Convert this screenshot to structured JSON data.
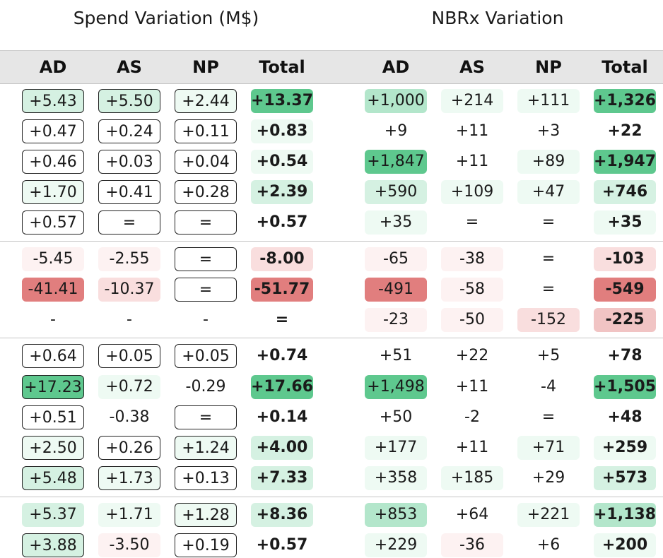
{
  "titles": {
    "spend": "Spend Variation (M$)",
    "nbrx": "NBRx Variation"
  },
  "headers": {
    "spend": [
      "AD",
      "AS",
      "NP",
      "Total"
    ],
    "nbrx": [
      "AD",
      "AS",
      "NP",
      "Total"
    ]
  },
  "colors": {
    "g1": "#eefaf3",
    "g2": "#d5f1e2",
    "g3": "#b3e6cb",
    "g4": "#5ec88e",
    "r1": "#fdf2f2",
    "r2": "#f9dede",
    "r3": "#f1c4c4",
    "r4": "#e17e7e"
  },
  "groups": [
    {
      "rows": [
        {
          "spend": [
            {
              "v": "+5.43",
              "c": "g2",
              "box": true
            },
            {
              "v": "+5.50",
              "c": "g2",
              "box": true
            },
            {
              "v": "+2.44",
              "c": "g1",
              "box": true
            },
            {
              "v": "+13.37",
              "c": "g4"
            }
          ],
          "nbrx": [
            {
              "v": "+1,000",
              "c": "g3"
            },
            {
              "v": "+214",
              "c": "g1"
            },
            {
              "v": "+111",
              "c": "g1"
            },
            {
              "v": "+1,326",
              "c": "g4"
            }
          ]
        },
        {
          "spend": [
            {
              "v": "+0.47",
              "c": "",
              "box": true
            },
            {
              "v": "+0.24",
              "c": "",
              "box": true
            },
            {
              "v": "+0.11",
              "c": "",
              "box": true
            },
            {
              "v": "+0.83",
              "c": "g1"
            }
          ],
          "nbrx": [
            {
              "v": "+9",
              "c": ""
            },
            {
              "v": "+11",
              "c": ""
            },
            {
              "v": "+3",
              "c": ""
            },
            {
              "v": "+22",
              "c": ""
            }
          ]
        },
        {
          "spend": [
            {
              "v": "+0.46",
              "c": "",
              "box": true
            },
            {
              "v": "+0.03",
              "c": "",
              "box": true
            },
            {
              "v": "+0.04",
              "c": "",
              "box": true
            },
            {
              "v": "+0.54",
              "c": "g1"
            }
          ],
          "nbrx": [
            {
              "v": "+1,847",
              "c": "g4"
            },
            {
              "v": "+11",
              "c": ""
            },
            {
              "v": "+89",
              "c": "g1"
            },
            {
              "v": "+1,947",
              "c": "g4"
            }
          ]
        },
        {
          "spend": [
            {
              "v": "+1.70",
              "c": "g1",
              "box": true
            },
            {
              "v": "+0.41",
              "c": "",
              "box": true
            },
            {
              "v": "+0.28",
              "c": "",
              "box": true
            },
            {
              "v": "+2.39",
              "c": "g2"
            }
          ],
          "nbrx": [
            {
              "v": "+590",
              "c": "g2"
            },
            {
              "v": "+109",
              "c": "g1"
            },
            {
              "v": "+47",
              "c": "g1"
            },
            {
              "v": "+746",
              "c": "g2"
            }
          ]
        },
        {
          "spend": [
            {
              "v": "+0.57",
              "c": "",
              "box": true
            },
            {
              "v": "=",
              "c": "",
              "box": true
            },
            {
              "v": "=",
              "c": "",
              "box": true
            },
            {
              "v": "+0.57",
              "c": ""
            }
          ],
          "nbrx": [
            {
              "v": "+35",
              "c": "g1"
            },
            {
              "v": "=",
              "c": ""
            },
            {
              "v": "=",
              "c": ""
            },
            {
              "v": "+35",
              "c": "g1"
            }
          ]
        }
      ]
    },
    {
      "rows": [
        {
          "spend": [
            {
              "v": "-5.45",
              "c": "r1"
            },
            {
              "v": "-2.55",
              "c": "r1"
            },
            {
              "v": "=",
              "c": "",
              "box": true
            },
            {
              "v": "-8.00",
              "c": "r2"
            }
          ],
          "nbrx": [
            {
              "v": "-65",
              "c": "r1"
            },
            {
              "v": "-38",
              "c": "r1"
            },
            {
              "v": "=",
              "c": ""
            },
            {
              "v": "-103",
              "c": "r2"
            }
          ]
        },
        {
          "spend": [
            {
              "v": "-41.41",
              "c": "r4"
            },
            {
              "v": "-10.37",
              "c": "r2"
            },
            {
              "v": "=",
              "c": "",
              "box": true
            },
            {
              "v": "-51.77",
              "c": "r4"
            }
          ],
          "nbrx": [
            {
              "v": "-491",
              "c": "r4"
            },
            {
              "v": "-58",
              "c": "r1"
            },
            {
              "v": "=",
              "c": ""
            },
            {
              "v": "-549",
              "c": "r4"
            }
          ]
        },
        {
          "spend": [
            {
              "v": "-",
              "c": ""
            },
            {
              "v": "-",
              "c": ""
            },
            {
              "v": "-",
              "c": ""
            },
            {
              "v": "=",
              "c": ""
            }
          ],
          "nbrx": [
            {
              "v": "-23",
              "c": "r1"
            },
            {
              "v": "-50",
              "c": "r1"
            },
            {
              "v": "-152",
              "c": "r2"
            },
            {
              "v": "-225",
              "c": "r3"
            }
          ]
        }
      ]
    },
    {
      "rows": [
        {
          "spend": [
            {
              "v": "+0.64",
              "c": "",
              "box": true
            },
            {
              "v": "+0.05",
              "c": "",
              "box": true
            },
            {
              "v": "+0.05",
              "c": "",
              "box": true
            },
            {
              "v": "+0.74",
              "c": ""
            }
          ],
          "nbrx": [
            {
              "v": "+51",
              "c": ""
            },
            {
              "v": "+22",
              "c": ""
            },
            {
              "v": "+5",
              "c": ""
            },
            {
              "v": "+78",
              "c": ""
            }
          ]
        },
        {
          "spend": [
            {
              "v": "+17.23",
              "c": "g4",
              "box": true
            },
            {
              "v": "+0.72",
              "c": "g1"
            },
            {
              "v": "-0.29",
              "c": ""
            },
            {
              "v": "+17.66",
              "c": "g4"
            }
          ],
          "nbrx": [
            {
              "v": "+1,498",
              "c": "g4"
            },
            {
              "v": "+11",
              "c": ""
            },
            {
              "v": "-4",
              "c": ""
            },
            {
              "v": "+1,505",
              "c": "g4"
            }
          ]
        },
        {
          "spend": [
            {
              "v": "+0.51",
              "c": "",
              "box": true
            },
            {
              "v": "-0.38",
              "c": ""
            },
            {
              "v": "=",
              "c": "",
              "box": true
            },
            {
              "v": "+0.14",
              "c": ""
            }
          ],
          "nbrx": [
            {
              "v": "+50",
              "c": ""
            },
            {
              "v": "-2",
              "c": ""
            },
            {
              "v": "=",
              "c": ""
            },
            {
              "v": "+48",
              "c": ""
            }
          ]
        },
        {
          "spend": [
            {
              "v": "+2.50",
              "c": "g1",
              "box": true
            },
            {
              "v": "+0.26",
              "c": "",
              "box": true
            },
            {
              "v": "+1.24",
              "c": "g1",
              "box": true
            },
            {
              "v": "+4.00",
              "c": "g2"
            }
          ],
          "nbrx": [
            {
              "v": "+177",
              "c": "g1"
            },
            {
              "v": "+11",
              "c": ""
            },
            {
              "v": "+71",
              "c": "g1"
            },
            {
              "v": "+259",
              "c": "g1"
            }
          ]
        },
        {
          "spend": [
            {
              "v": "+5.48",
              "c": "g2",
              "box": true
            },
            {
              "v": "+1.73",
              "c": "g1",
              "box": true
            },
            {
              "v": "+0.13",
              "c": "",
              "box": true
            },
            {
              "v": "+7.33",
              "c": "g2"
            }
          ],
          "nbrx": [
            {
              "v": "+358",
              "c": "g1"
            },
            {
              "v": "+185",
              "c": "g1"
            },
            {
              "v": "+29",
              "c": ""
            },
            {
              "v": "+573",
              "c": "g2"
            }
          ]
        }
      ]
    },
    {
      "rows": [
        {
          "spend": [
            {
              "v": "+5.37",
              "c": "g2"
            },
            {
              "v": "+1.71",
              "c": "g1"
            },
            {
              "v": "+1.28",
              "c": "g1",
              "box": true
            },
            {
              "v": "+8.36",
              "c": "g2"
            }
          ],
          "nbrx": [
            {
              "v": "+853",
              "c": "g3"
            },
            {
              "v": "+64",
              "c": ""
            },
            {
              "v": "+221",
              "c": "g1"
            },
            {
              "v": "+1,138",
              "c": "g3"
            }
          ]
        },
        {
          "spend": [
            {
              "v": "+3.88",
              "c": "g2",
              "box": true
            },
            {
              "v": "-3.50",
              "c": "r1"
            },
            {
              "v": "+0.19",
              "c": "",
              "box": true
            },
            {
              "v": "+0.57",
              "c": ""
            }
          ],
          "nbrx": [
            {
              "v": "+229",
              "c": "g1"
            },
            {
              "v": "-36",
              "c": "r1"
            },
            {
              "v": "+6",
              "c": ""
            },
            {
              "v": "+200",
              "c": "g1"
            }
          ]
        }
      ]
    }
  ]
}
